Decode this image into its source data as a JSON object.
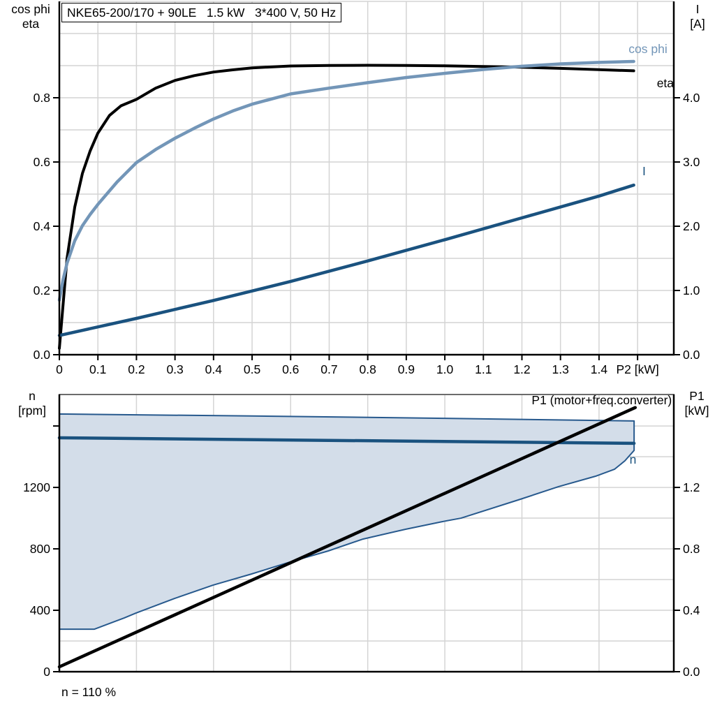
{
  "header": {
    "title": "NKE65-200/170 + 90LE   1.5 kW   3*400 V, 50 Hz"
  },
  "footer": {
    "annotation": "n = 110 %"
  },
  "colors": {
    "black": "#000000",
    "light_blue": "#7396B8",
    "dark_blue": "#1A527F",
    "band_fill": "#D3DDE9",
    "band_stroke": "#27598D",
    "grid": "#D4D4D4",
    "frame_gray": "#6B6B6B"
  },
  "chart_data": [
    {
      "type": "line",
      "title": "NKE65-200/170 + 90LE   1.5 kW   3*400 V, 50 Hz",
      "x_axis": {
        "label": "P2 [kW]",
        "range": [
          0,
          1.594
        ],
        "grid_step": 0.1,
        "tick_labels": [
          "0",
          "0.1",
          "0.2",
          "0.3",
          "0.4",
          "0.5",
          "0.6",
          "0.7",
          "0.8",
          "0.9",
          "1.0",
          "1.1",
          "1.2",
          "1.3",
          "1.4",
          "P2 [kW]"
        ]
      },
      "left_axis": {
        "title_lines": [
          "cos phi",
          "eta"
        ],
        "range": [
          0,
          1.1
        ],
        "grid_step": 0.1,
        "ticks": [
          {
            "v": 0.0,
            "label": "0.0"
          },
          {
            "v": 0.2,
            "label": "0.2"
          },
          {
            "v": 0.4,
            "label": "0.4"
          },
          {
            "v": 0.6,
            "label": "0.6"
          },
          {
            "v": 0.8,
            "label": "0.8"
          }
        ]
      },
      "right_axis": {
        "title_lines": [
          "I",
          "[A]"
        ],
        "range": [
          0,
          5.5
        ],
        "grid_step": 0.5,
        "ticks": [
          {
            "v": 0.0,
            "label": "0.0"
          },
          {
            "v": 1.0,
            "label": "1.0"
          },
          {
            "v": 2.0,
            "label": "2.0"
          },
          {
            "v": 3.0,
            "label": "3.0"
          },
          {
            "v": 4.0,
            "label": "4.0"
          }
        ]
      },
      "series": [
        {
          "name": "eta",
          "color": "#000000",
          "axis": "left",
          "width": 4,
          "label_xy": [
            1.572,
            0.846
          ],
          "label_anchor": "middle",
          "points": [
            [
              0,
              0.02
            ],
            [
              0.01,
              0.16
            ],
            [
              0.02,
              0.3
            ],
            [
              0.04,
              0.46
            ],
            [
              0.06,
              0.565
            ],
            [
              0.08,
              0.635
            ],
            [
              0.1,
              0.69
            ],
            [
              0.13,
              0.745
            ],
            [
              0.16,
              0.775
            ],
            [
              0.2,
              0.795
            ],
            [
              0.25,
              0.83
            ],
            [
              0.3,
              0.854
            ],
            [
              0.35,
              0.869
            ],
            [
              0.4,
              0.88
            ],
            [
              0.45,
              0.887
            ],
            [
              0.5,
              0.893
            ],
            [
              0.6,
              0.899
            ],
            [
              0.7,
              0.9005
            ],
            [
              0.8,
              0.901
            ],
            [
              0.9,
              0.9005
            ],
            [
              1.0,
              0.8995
            ],
            [
              1.1,
              0.8975
            ],
            [
              1.2,
              0.895
            ],
            [
              1.3,
              0.8915
            ],
            [
              1.4,
              0.8875
            ],
            [
              1.49,
              0.884
            ]
          ]
        },
        {
          "name": "cos phi",
          "color": "#7396B8",
          "axis": "left",
          "width": 4.5,
          "label_xy": [
            1.527,
            0.952
          ],
          "label_anchor": "middle",
          "points": [
            [
              0,
              0.17
            ],
            [
              0.01,
              0.235
            ],
            [
              0.02,
              0.285
            ],
            [
              0.04,
              0.355
            ],
            [
              0.06,
              0.402
            ],
            [
              0.08,
              0.437
            ],
            [
              0.1,
              0.468
            ],
            [
              0.15,
              0.538
            ],
            [
              0.2,
              0.598
            ],
            [
              0.25,
              0.639
            ],
            [
              0.3,
              0.674
            ],
            [
              0.35,
              0.705
            ],
            [
              0.4,
              0.734
            ],
            [
              0.45,
              0.759
            ],
            [
              0.5,
              0.78
            ],
            [
              0.6,
              0.812
            ],
            [
              0.7,
              0.83
            ],
            [
              0.8,
              0.847
            ],
            [
              0.9,
              0.863
            ],
            [
              1.0,
              0.876
            ],
            [
              1.1,
              0.888
            ],
            [
              1.2,
              0.898
            ],
            [
              1.3,
              0.9055
            ],
            [
              1.4,
              0.91
            ],
            [
              1.49,
              0.913
            ]
          ]
        },
        {
          "name": "I",
          "color": "#1A527F",
          "axis": "right",
          "width": 4.5,
          "label_xy": [
            1.517,
            2.86
          ],
          "label_anchor": "middle",
          "points": [
            [
              0,
              0.3
            ],
            [
              0.2,
              0.565
            ],
            [
              0.4,
              0.845
            ],
            [
              0.6,
              1.14
            ],
            [
              0.8,
              1.46
            ],
            [
              1.0,
              1.79
            ],
            [
              1.2,
              2.13
            ],
            [
              1.4,
              2.47
            ],
            [
              1.49,
              2.64
            ]
          ]
        }
      ]
    },
    {
      "type": "line",
      "title": "",
      "x_axis": {
        "label": "",
        "range": [
          0,
          1.594
        ],
        "grid_step": 0.2,
        "tick_labels": []
      },
      "left_axis": {
        "title_lines": [
          "n",
          "[rpm]"
        ],
        "range": [
          0,
          1805
        ],
        "grid_step": 200,
        "ticks": [
          {
            "v": 0,
            "label": "0"
          },
          {
            "v": 400,
            "label": "400"
          },
          {
            "v": 800,
            "label": "800"
          },
          {
            "v": 1200,
            "label": "1200"
          },
          {
            "v": 1600,
            "label": ""
          }
        ]
      },
      "right_axis": {
        "title_lines": [
          "P1",
          "[kW]"
        ],
        "range": [
          0,
          1.805
        ],
        "grid_step": 0.2,
        "ticks": [
          {
            "v": 0.0,
            "label": "0.0"
          },
          {
            "v": 0.4,
            "label": "0.4"
          },
          {
            "v": 0.8,
            "label": "0.8"
          },
          {
            "v": 1.2,
            "label": "1.2"
          }
        ]
      },
      "band": {
        "name": "speed-range-band",
        "fill": "#D3DDE9",
        "stroke": "#27598D",
        "axis": "left",
        "upper": [
          [
            0,
            1678
          ],
          [
            0.5,
            1665
          ],
          [
            1.0,
            1650
          ],
          [
            1.491,
            1633
          ]
        ],
        "lower": [
          [
            0,
            277
          ],
          [
            0.091,
            277
          ],
          [
            0.168,
            350
          ],
          [
            0.199,
            382
          ],
          [
            0.299,
            477
          ],
          [
            0.399,
            564
          ],
          [
            0.498,
            636
          ],
          [
            0.598,
            714
          ],
          [
            0.697,
            786
          ],
          [
            0.788,
            864
          ],
          [
            0.897,
            927
          ],
          [
            0.993,
            977
          ],
          [
            1.042,
            1000
          ],
          [
            1.196,
            1123
          ],
          [
            1.295,
            1205
          ],
          [
            1.391,
            1273
          ],
          [
            1.44,
            1318
          ],
          [
            1.467,
            1373
          ],
          [
            1.491,
            1441
          ]
        ]
      },
      "series": [
        {
          "name": "n",
          "color": "#1A527F",
          "axis": "left",
          "width": 4.5,
          "label_xy": [
            1.488,
            1382
          ],
          "label_anchor": "middle",
          "points": [
            [
              0,
              1523
            ],
            [
              1.491,
              1487
            ]
          ]
        },
        {
          "name": "P1 (motor+freq.converter)",
          "color": "#000000",
          "axis": "right",
          "width": 4.5,
          "label_xy": [
            1.589,
            1.768
          ],
          "label_anchor": "end",
          "points": [
            [
              0,
              0.032
            ],
            [
              1.494,
              1.72
            ]
          ]
        }
      ],
      "annotation": "n = 110 %"
    }
  ]
}
